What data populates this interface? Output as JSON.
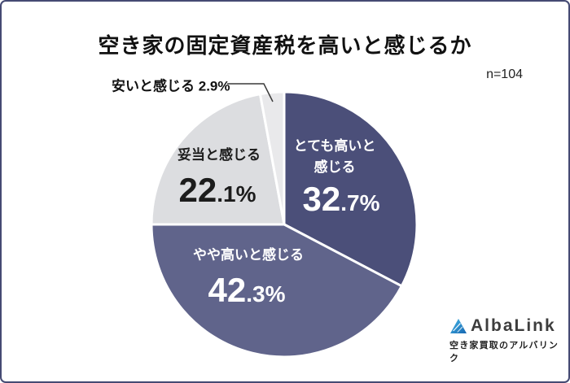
{
  "header": {
    "title": "空き家の固定資産税を高いと感じるか",
    "sample_size": "n=104"
  },
  "chart_data": {
    "type": "pie",
    "title": "空き家の固定資産税を高いと感じるか",
    "sample_size": "n=104",
    "start_angle_deg": 0,
    "direction": "clockwise",
    "donut": false,
    "legend": "none",
    "slices": [
      {
        "label": "とても高いと感じる",
        "label_lines": [
          "とても高いと",
          "感じる"
        ],
        "value": 32.7,
        "value_main": "32",
        "value_rest": ".7%",
        "color": "#4b4f79",
        "label_color": "#ffffff"
      },
      {
        "label": "やや高いと感じる",
        "value": 42.3,
        "value_main": "42",
        "value_rest": ".3%",
        "color": "#60648b",
        "label_color": "#ffffff"
      },
      {
        "label": "妥当と感じる",
        "value": 22.1,
        "value_main": "22",
        "value_rest": ".1%",
        "color": "#dcdde0",
        "label_color": "#1c1c1c"
      },
      {
        "label": "安いと感じる",
        "value": 2.9,
        "value_display": "2.9%",
        "color": "#e9e9eb",
        "label_color": "#111111"
      }
    ]
  },
  "footer": {
    "logo_text": "AlbaLink",
    "logo_tagline": "空き家買取のアルバリンク",
    "logo_colors": {
      "light": "#45b8e8",
      "dark": "#1565b0"
    }
  }
}
